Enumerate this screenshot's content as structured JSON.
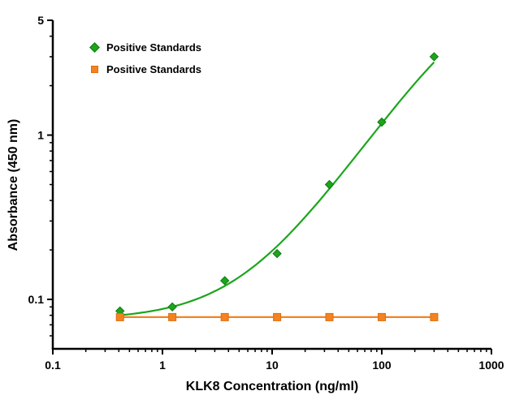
{
  "chart_data": {
    "type": "scatter",
    "title": "",
    "xlabel": "KLK8 Concentration (ng/ml)",
    "ylabel": "Absorbance (450 nm)",
    "x_scale": "log",
    "y_scale": "log",
    "xlim": [
      0.1,
      1000
    ],
    "ylim": [
      0.05,
      5
    ],
    "grid": false,
    "legend_position": "top-left-inside",
    "x_ticks": [
      {
        "value": 0.1,
        "label": "0.1"
      },
      {
        "value": 1,
        "label": "1"
      },
      {
        "value": 10,
        "label": "10"
      },
      {
        "value": 100,
        "label": "100"
      },
      {
        "value": 1000,
        "label": "1000"
      }
    ],
    "y_ticks": [
      {
        "value": 0.1,
        "label": "0.1"
      },
      {
        "value": 1,
        "label": "1"
      },
      {
        "value": 5,
        "label": "5"
      }
    ],
    "series": [
      {
        "name": "Positive Standards",
        "marker": "diamond",
        "color": "#1ca51c",
        "edge": "#0d7a0d",
        "x": [
          0.41,
          1.23,
          3.7,
          11.1,
          33.3,
          100,
          300
        ],
        "y": [
          0.085,
          0.09,
          0.13,
          0.19,
          0.5,
          1.2,
          3.0
        ],
        "fit": {
          "type": "4pl",
          "bottom": 0.075,
          "top": 10,
          "ec50": 800,
          "hill": 1.0
        }
      },
      {
        "name": "Positive Standards",
        "marker": "square",
        "color": "#f58220",
        "edge": "#da6f0c",
        "x": [
          0.41,
          1.23,
          3.7,
          11.1,
          33.3,
          100,
          300
        ],
        "y": [
          0.078,
          0.078,
          0.078,
          0.078,
          0.078,
          0.078,
          0.078
        ],
        "fit": {
          "type": "flat",
          "value": 0.078
        }
      }
    ]
  }
}
